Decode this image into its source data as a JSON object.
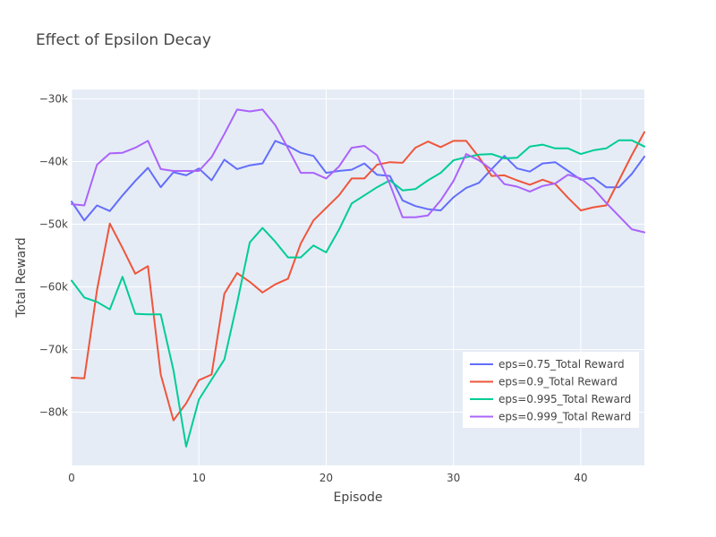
{
  "chart_data": {
    "type": "line",
    "title": "Effect of Epsilon Decay",
    "xlabel": "Episode",
    "ylabel": "Total Reward",
    "xlim": [
      0,
      45
    ],
    "ylim": [
      -88500,
      -28500
    ],
    "xticks": [
      0,
      10,
      20,
      30,
      40
    ],
    "yticks": [
      {
        "value": -30000,
        "label": "−30k"
      },
      {
        "value": -40000,
        "label": "−40k"
      },
      {
        "value": -50000,
        "label": "−50k"
      },
      {
        "value": -60000,
        "label": "−60k"
      },
      {
        "value": -70000,
        "label": "−70k"
      },
      {
        "value": -80000,
        "label": "−80k"
      }
    ],
    "grid": true,
    "legend_position": "bottom-right",
    "background": "#e5ecf6",
    "x": [
      0,
      1,
      2,
      3,
      4,
      5,
      6,
      7,
      8,
      9,
      10,
      11,
      12,
      13,
      14,
      15,
      16,
      17,
      18,
      19,
      20,
      21,
      22,
      23,
      24,
      25,
      26,
      27,
      28,
      29,
      30,
      31,
      32,
      33,
      34,
      35,
      36,
      37,
      38,
      39,
      40,
      41,
      42,
      43,
      44,
      45
    ],
    "series": [
      {
        "name": "eps=0.75_Total Reward",
        "color": "#636efa",
        "values": [
          -46400,
          -49400,
          -47000,
          -47900,
          -45400,
          -43100,
          -41000,
          -44100,
          -41700,
          -42200,
          -41100,
          -43000,
          -39700,
          -41200,
          -40600,
          -40300,
          -36700,
          -37500,
          -38600,
          -39100,
          -41800,
          -41500,
          -41300,
          -40300,
          -42100,
          -42300,
          -46200,
          -47100,
          -47600,
          -47800,
          -45700,
          -44200,
          -43400,
          -41200,
          -39100,
          -41100,
          -41600,
          -40300,
          -40100,
          -41500,
          -42900,
          -42600,
          -44100,
          -44100,
          -42000,
          -39200
        ]
      },
      {
        "name": "eps=0.9_Total Reward",
        "color": "#ef553b",
        "values": [
          -74500,
          -74600,
          -60500,
          -49900,
          -53800,
          -57900,
          -56700,
          -74000,
          -81300,
          -78600,
          -74900,
          -74000,
          -61100,
          -57800,
          -59200,
          -60900,
          -59600,
          -58700,
          -53100,
          -49400,
          -47400,
          -45400,
          -42700,
          -42700,
          -40500,
          -40100,
          -40200,
          -37800,
          -36800,
          -37700,
          -36700,
          -36700,
          -39300,
          -42300,
          -42200,
          -43000,
          -43700,
          -42900,
          -43600,
          -45800,
          -47800,
          -47300,
          -47000,
          -43000,
          -39000,
          -35300
        ]
      },
      {
        "name": "eps=0.995_Total Reward",
        "color": "#00cc96",
        "values": [
          -59000,
          -61700,
          -62400,
          -63600,
          -58400,
          -64300,
          -64400,
          -64400,
          -73300,
          -85500,
          -78000,
          -74800,
          -71600,
          -62600,
          -52900,
          -50600,
          -52800,
          -55300,
          -55300,
          -53400,
          -54500,
          -50900,
          -46700,
          -45400,
          -44100,
          -43000,
          -44600,
          -44400,
          -43000,
          -41800,
          -39800,
          -39300,
          -38900,
          -38800,
          -39500,
          -39400,
          -37600,
          -37300,
          -37900,
          -37900,
          -38800,
          -38200,
          -37900,
          -36600,
          -36600,
          -37600
        ]
      },
      {
        "name": "eps=0.999_Total Reward",
        "color": "#ab63fa",
        "values": [
          -46800,
          -47000,
          -40500,
          -38700,
          -38600,
          -37800,
          -36700,
          -41200,
          -41500,
          -41500,
          -41500,
          -39300,
          -35600,
          -31700,
          -32000,
          -31700,
          -34200,
          -37900,
          -41800,
          -41800,
          -42700,
          -40800,
          -37800,
          -37500,
          -39000,
          -43600,
          -48900,
          -48900,
          -48600,
          -46200,
          -43100,
          -38800,
          -39800,
          -41300,
          -43600,
          -44000,
          -44800,
          -43900,
          -43500,
          -42100,
          -42700,
          -44300,
          -46600,
          -48700,
          -50800,
          -51300
        ]
      }
    ]
  }
}
